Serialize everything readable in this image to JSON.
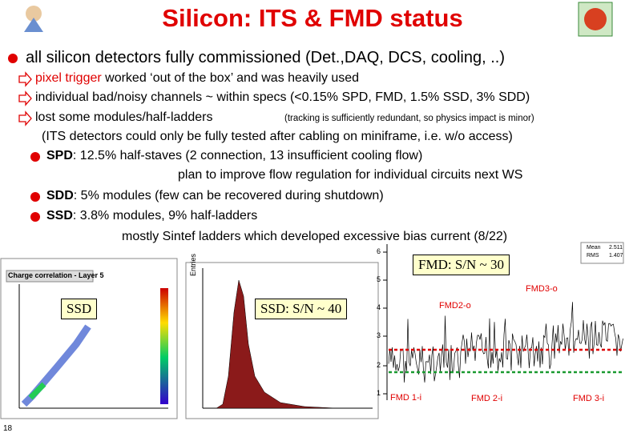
{
  "header": {
    "title": "Silicon: ITS & FMD status"
  },
  "bullets": [
    {
      "text": "all silicon detectors fully commissioned (Det.,DAQ, DCS, cooling, ..)"
    },
    {
      "highlight": "pixel trigger",
      "text": " worked ‘out of the box’ and was heavily used"
    },
    {
      "text": "individual bad/noisy channels ~ within specs (<0.15% SPD, FMD, 1.5% SSD, 3% SDD)"
    },
    {
      "text": "lost some modules/half-ladders",
      "note": "(tracking is sufficiently redundant, so physics impact is minor)"
    },
    {
      "text": "(ITS detectors could only be fully tested after cabling on miniframe, i.e. w/o access)"
    },
    {
      "label": "SPD",
      "text": ": 12.5% half-staves (2 connection, 13 insufficient cooling flow)"
    },
    {
      "text": "plan to improve flow regulation for individual circuits next WS"
    },
    {
      "label": "SDD",
      "text": ": 5% modules (few can be recovered during shutdown)"
    },
    {
      "label": "SSD",
      "text": ": 3.8% modules, 9% half-ladders"
    },
    {
      "text": "mostly Sintef ladders which developed excessive bias current (8/22)"
    }
  ],
  "plots": {
    "ssd_correlation": {
      "title": "Charge correlation - Layer 5",
      "tag": "SSD"
    },
    "ssd_histogram": {
      "ylabel": "Entries",
      "tag": "SSD: S/N ~ 40"
    },
    "fmd": {
      "tag": "FMD: S/N ~ 30",
      "yticks": [
        "6",
        "5",
        "4",
        "3",
        "2",
        "1"
      ],
      "stats": [
        "Mean",
        "RMS"
      ],
      "stat_values": [
        "2.511",
        "1.407"
      ],
      "rings": [
        "FMD3-o",
        "FMD2-o",
        "FMD 1-i",
        "FMD 2-i",
        "FMD 3-i"
      ]
    }
  },
  "footer": {
    "page": "18"
  }
}
